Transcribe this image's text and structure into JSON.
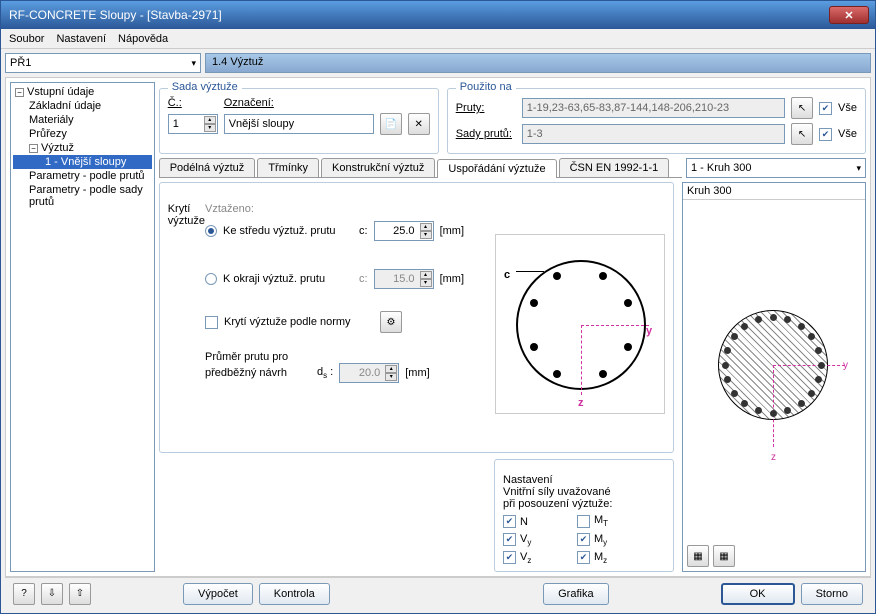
{
  "window": {
    "title": "RF-CONCRETE Sloupy - [Stavba-2971]"
  },
  "menu": {
    "file": "Soubor",
    "settings": "Nastavení",
    "help": "Nápověda"
  },
  "dropdown_pr1": "PŘ1",
  "section_title": "1.4 Výztuž",
  "tree": {
    "root": "Vstupní údaje",
    "i1": "Základní údaje",
    "i2": "Materiály",
    "i3": "Průřezy",
    "i4": "Výztuž",
    "i4_1": "1 - Vnější sloupy",
    "i5": "Parametry - podle prutů",
    "i6": "Parametry - podle sady prutů"
  },
  "sada": {
    "legend": "Sada výztuže",
    "c_label": "Č.:",
    "c_value": "1",
    "oznaceni_label": "Označení:",
    "oznaceni_value": "Vnější sloupy"
  },
  "pouzito": {
    "legend": "Použito na",
    "pruty_label": "Pruty:",
    "pruty_value": "1-19,23-63,65-83,87-144,148-206,210-23",
    "sady_label": "Sady prutů:",
    "sady_value": "1-3",
    "vse1": "Vše",
    "vse2": "Vše"
  },
  "tabs": {
    "t1": "Podélná výztuž",
    "t2": "Třmínky",
    "t3": "Konstrukční výztuž",
    "t4": "Uspořádání výztuže",
    "t5": "ČSN EN 1992-1-1"
  },
  "cross_section": "1 - Kruh 300",
  "preview_title": "Kruh 300",
  "kryti": {
    "legend": "Krytí výztuže",
    "vztazeno": "Vztaženo:",
    "r1": "Ke středu výztuž. prutu",
    "r2": "K okraji výztuž. prutu",
    "c_label": "c:",
    "c_value": "25.0",
    "c2_value": "15.0",
    "unit": "[mm]",
    "norma": "Krytí výztuže podle normy",
    "prumer_l1": "Průměr prutu pro",
    "prumer_l2": "předběžný návrh",
    "ds_label": "ds :",
    "ds_value": "20.0"
  },
  "nastaveni": {
    "legend": "Nastavení",
    "desc1": "Vnitřní síly uvažované",
    "desc2": "při posouzení výztuže:",
    "n": "N",
    "mt": "M T",
    "vy": "V y",
    "my": "M y",
    "vz": "V z",
    "mz": "M z"
  },
  "buttons": {
    "vypocet": "Výpočet",
    "kontrola": "Kontrola",
    "grafika": "Grafika",
    "ok": "OK",
    "storno": "Storno"
  }
}
